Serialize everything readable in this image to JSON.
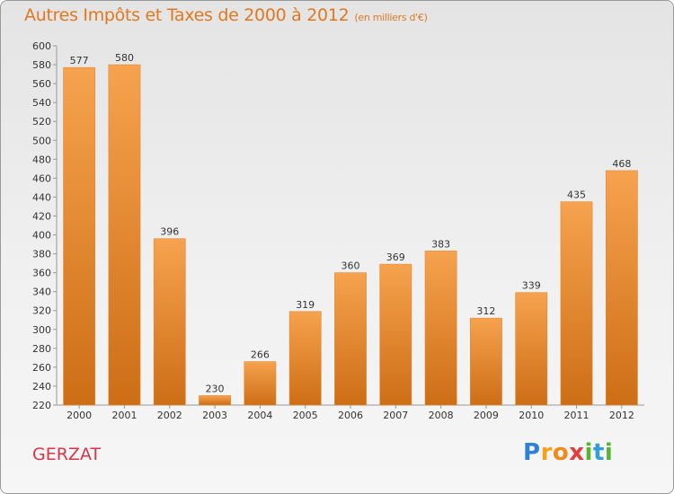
{
  "chart_data": {
    "type": "bar",
    "title": "Autres Impôts et Taxes de 2000 à 2012",
    "subtitle": "(en milliers d'€)",
    "categories": [
      "2000",
      "2001",
      "2002",
      "2003",
      "2004",
      "2005",
      "2006",
      "2007",
      "2008",
      "2009",
      "2010",
      "2011",
      "2012"
    ],
    "values": [
      577,
      580,
      396,
      230,
      266,
      319,
      360,
      369,
      383,
      312,
      339,
      435,
      468
    ],
    "ylim": [
      220,
      600
    ],
    "ytick_step": 20,
    "grid": false,
    "bar_color_top": "#f6a24e",
    "bar_color_bottom": "#cd6e16"
  },
  "footer": {
    "commune": "GERZAT",
    "brand_letters": [
      {
        "ch": "P",
        "color": "#2f7fd6"
      },
      {
        "ch": "r",
        "color": "#f2a21b"
      },
      {
        "ch": "o",
        "color": "#f28a1b"
      },
      {
        "ch": "x",
        "color": "#e33d3d"
      },
      {
        "ch": "i",
        "color": "#5bb336"
      },
      {
        "ch": "t",
        "color": "#2f9fd6"
      },
      {
        "ch": "i",
        "color": "#5bb336"
      }
    ]
  }
}
